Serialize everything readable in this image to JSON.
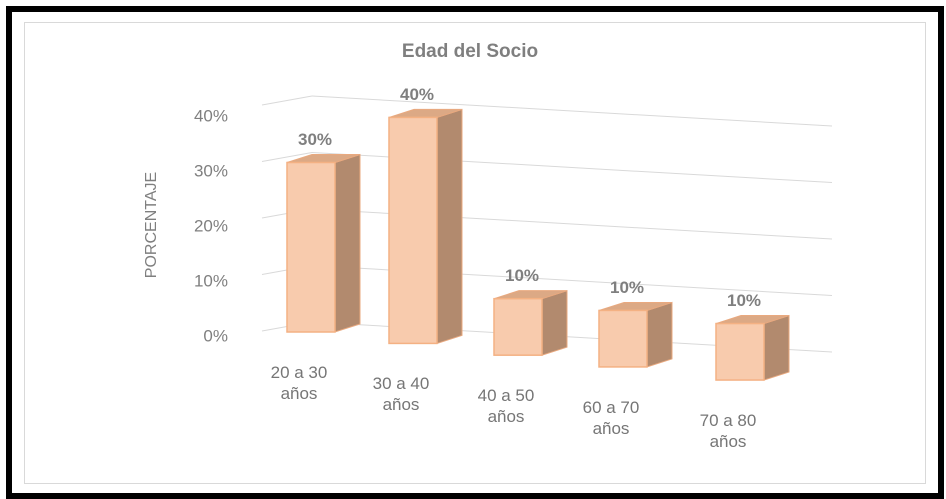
{
  "chart_data": {
    "type": "bar3d",
    "title": "Edad del Socio",
    "y_label": "PORCENTAJE",
    "categories": [
      "20 a 30 años",
      "30 a 40 años",
      "40 a 50 años",
      "60 a 70 años",
      "70 a 80 años"
    ],
    "values": [
      30,
      40,
      10,
      10,
      10
    ],
    "value_labels": [
      "30%",
      "40%",
      "10%",
      "10%",
      "10%"
    ],
    "color": "#f8cbad",
    "ylim": [
      0,
      40
    ],
    "yticks": [
      {
        "value": 0,
        "label": "0%"
      },
      {
        "value": 10,
        "label": "10%"
      },
      {
        "value": 20,
        "label": "20%"
      },
      {
        "value": 30,
        "label": "30%"
      },
      {
        "value": 40,
        "label": "40%"
      }
    ],
    "grid": true
  }
}
